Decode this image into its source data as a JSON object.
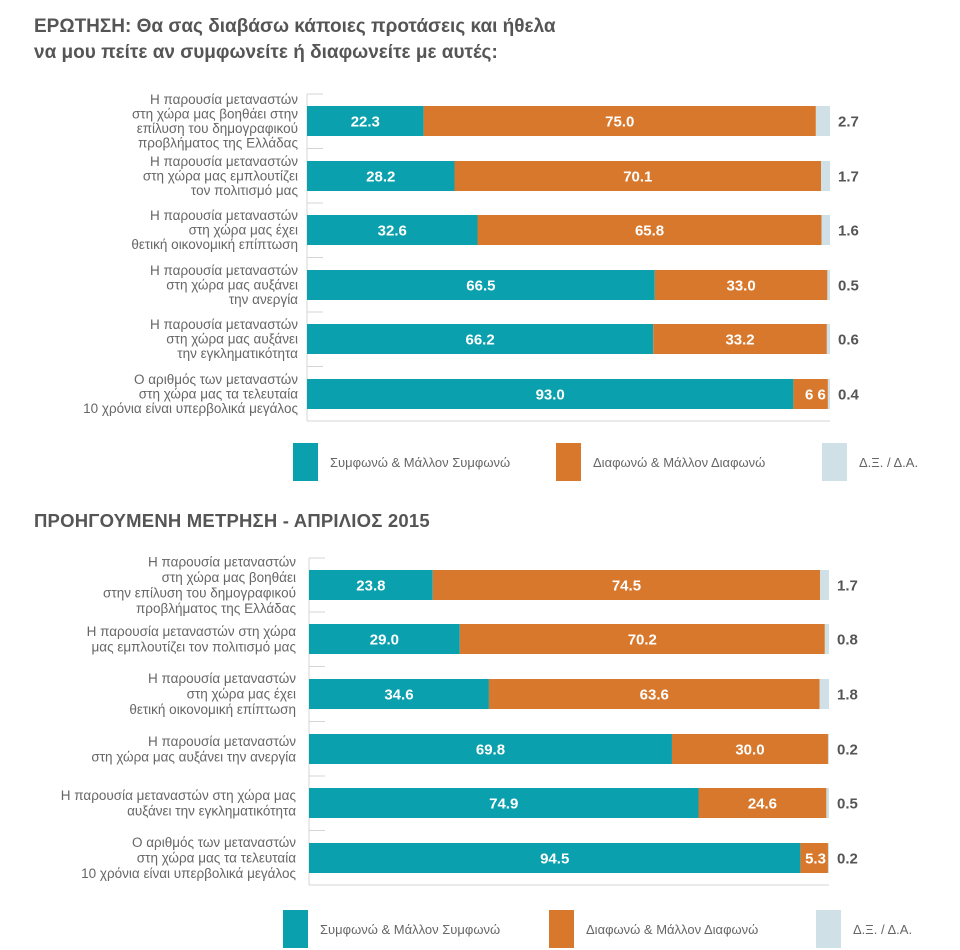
{
  "titles": {
    "question": [
      "ΕΡΩΤΗΣΗ: Θα σας διαβάσω κάποιες προτάσεις και ήθελα",
      "να μου πείτε αν συμφωνείτε ή διαφωνείτε με αυτές:"
    ],
    "previous": "ΠΡΟΗΓΟΥΜΕΝΗ ΜΕΤΡΗΣΗ - ΑΠΡΙΛΙΟΣ 2015"
  },
  "colors": {
    "agree": "#0aa0ad",
    "disagree": "#d8782c",
    "dk": "#cfe1e6",
    "axis": "#d4d4d4"
  },
  "legend": [
    {
      "key": "agree",
      "label": "Συμφωνώ & Μάλλον Συμφωνώ"
    },
    {
      "key": "disagree",
      "label": "Διαφωνώ & Μάλλον Διαφωνώ"
    },
    {
      "key": "dk",
      "label": "Δ.Ξ. / Δ.Α."
    }
  ],
  "chart_data": [
    {
      "type": "bar",
      "orientation": "horizontal",
      "stacked": true,
      "title": "ΕΡΩΤΗΣΗ: Θα σας διαβάσω κάποιες προτάσεις και ήθελα να μου πείτε αν συμφωνείτε ή διαφωνείτε με αυτές:",
      "xlim": [
        0,
        100
      ],
      "grid": false,
      "legend_position": "bottom",
      "categories": [
        [
          "Η παρουσία μεταναστών",
          "στη χώρα μας βοηθάει στην",
          "επίλυση του δημογραφικού",
          "προβλήματος της Ελλάδας"
        ],
        [
          "Η παρουσία μεταναστών",
          "στη χώρα μας εμπλουτίζει",
          "τον πολιτισμό μας"
        ],
        [
          "Η παρουσία μεταναστών",
          "στη χώρα μας έχει",
          "θετική οικονομική επίπτωση"
        ],
        [
          "Η παρουσία μεταναστών",
          "στη χώρα μας αυξάνει",
          "την ανεργία"
        ],
        [
          "Η παρουσία μεταναστών",
          "στη χώρα μας αυξάνει",
          "την εγκληματικότητα"
        ],
        [
          "Ο αριθμός των μεταναστών",
          "στη χώρα μας τα τελευταία",
          "10 χρόνια είναι υπερβολικά μεγάλος"
        ]
      ],
      "series": [
        {
          "name": "Συμφωνώ & Μάλλον Συμφωνώ",
          "key": "agree",
          "values": [
            22.3,
            28.2,
            32.6,
            66.5,
            66.2,
            93.0
          ],
          "labels": [
            "22.3",
            "28.2",
            "32.6",
            "66.5",
            "66.2",
            "93.0"
          ]
        },
        {
          "name": "Διαφωνώ & Μάλλον Διαφωνώ",
          "key": "disagree",
          "values": [
            75.0,
            70.1,
            65.8,
            33.0,
            33.2,
            6.6
          ],
          "labels": [
            "75.0",
            "70.1",
            "65.8",
            "33.0",
            "33.2",
            "6 6"
          ]
        },
        {
          "name": "Δ.Ξ. / Δ.Α.",
          "key": "dk",
          "values": [
            2.7,
            1.7,
            1.6,
            0.5,
            0.6,
            0.4
          ],
          "labels": [
            "2.7",
            "1.7",
            "1.6",
            "0.5",
            "0.6",
            "0.4"
          ]
        }
      ]
    },
    {
      "type": "bar",
      "orientation": "horizontal",
      "stacked": true,
      "title": "ΠΡΟΗΓΟΥΜΕΝΗ ΜΕΤΡΗΣΗ - ΑΠΡΙΛΙΟΣ 2015",
      "xlim": [
        0,
        100
      ],
      "grid": false,
      "legend_position": "bottom",
      "categories": [
        [
          "Η παρουσία μεταναστών",
          "στη χώρα μας βοηθάει",
          "στην επίλυση του δημογραφικού",
          "προβλήματος της Ελλάδας"
        ],
        [
          "Η παρουσία μεταναστών στη χώρα",
          "μας εμπλουτίζει τον πολιτισμό μας"
        ],
        [
          "Η παρουσία μεταναστών",
          "στη χώρα μας έχει",
          "θετική οικονομική επίπτωση"
        ],
        [
          "Η παρουσία μεταναστών",
          "στη χώρα μας αυξάνει την ανεργία"
        ],
        [
          "Η παρουσία μεταναστών στη χώρα μας",
          "αυξάνει την εγκληματικότητα"
        ],
        [
          "Ο αριθμός των μεταναστών",
          "στη χώρα μας τα τελευταία",
          "10 χρόνια είναι υπερβολικά μεγάλος"
        ]
      ],
      "series": [
        {
          "name": "Συμφωνώ & Μάλλον Συμφωνώ",
          "key": "agree",
          "values": [
            23.8,
            29.0,
            34.6,
            69.8,
            74.9,
            94.5
          ],
          "labels": [
            "23.8",
            "29.0",
            "34.6",
            "69.8",
            "74.9",
            "94.5"
          ]
        },
        {
          "name": "Διαφωνώ & Μάλλον Διαφωνώ",
          "key": "disagree",
          "values": [
            74.5,
            70.2,
            63.6,
            30.0,
            24.6,
            5.3
          ],
          "labels": [
            "74.5",
            "70.2",
            "63.6",
            "30.0",
            "24.6",
            "5.3"
          ]
        },
        {
          "name": "Δ.Ξ. / Δ.Α.",
          "key": "dk",
          "values": [
            1.7,
            0.8,
            1.8,
            0.2,
            0.5,
            0.2
          ],
          "labels": [
            "1.7",
            "0.8",
            "1.8",
            "0.2",
            "0.5",
            "0.2"
          ]
        }
      ]
    }
  ]
}
